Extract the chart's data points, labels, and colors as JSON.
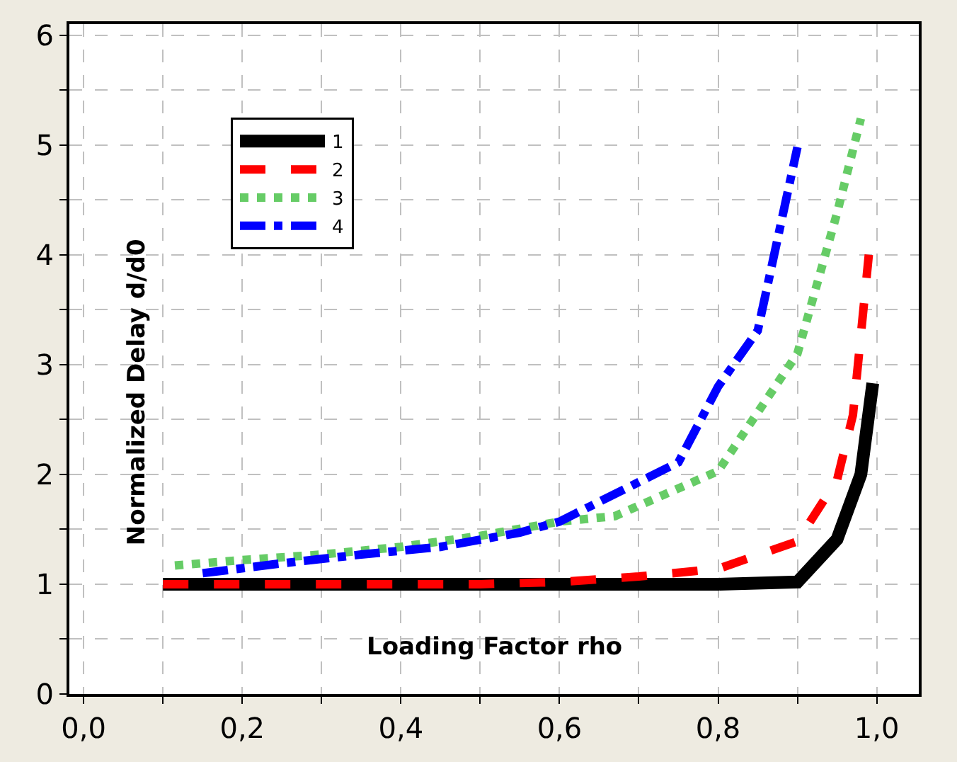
{
  "chart_data": {
    "type": "line",
    "xlabel": "Loading Factor rho",
    "ylabel": "Normalized Delay d/d0",
    "series": [
      {
        "name": "1",
        "color": "#000000",
        "line_style": "solid",
        "x": [
          0.1,
          0.2,
          0.3,
          0.4,
          0.5,
          0.6,
          0.7,
          0.8,
          0.9,
          0.95,
          0.98,
          0.995
        ],
        "values": [
          1.0,
          1.0,
          1.0,
          1.0,
          1.0,
          1.0,
          1.0,
          1.0,
          1.02,
          1.41,
          2.0,
          2.83
        ]
      },
      {
        "name": "2",
        "color": "#ff0000",
        "line_style": "dashed",
        "x": [
          0.1,
          0.2,
          0.3,
          0.4,
          0.5,
          0.6,
          0.7,
          0.8,
          0.9,
          0.95,
          0.97,
          0.99
        ],
        "values": [
          1.0,
          1.0,
          1.0,
          1.0,
          1.0,
          1.02,
          1.07,
          1.14,
          1.39,
          1.95,
          2.54,
          4.0
        ]
      },
      {
        "name": "3",
        "color": "#66cc66",
        "line_style": "dotted",
        "x": [
          0.115,
          0.2,
          0.3,
          0.4,
          0.5,
          0.6,
          0.67,
          0.8,
          0.9,
          0.95,
          0.98
        ],
        "values": [
          1.17,
          1.22,
          1.27,
          1.34,
          1.44,
          1.57,
          1.62,
          2.03,
          3.1,
          4.38,
          5.24
        ]
      },
      {
        "name": "4",
        "color": "#0000ff",
        "line_style": "dashdot",
        "x": [
          0.15,
          0.25,
          0.35,
          0.45,
          0.55,
          0.6,
          0.75,
          0.8,
          0.85,
          0.9
        ],
        "values": [
          1.1,
          1.19,
          1.27,
          1.34,
          1.47,
          1.57,
          2.11,
          2.8,
          3.31,
          4.98
        ]
      }
    ],
    "xlim": [
      -0.018,
      1.053
    ],
    "ylim": [
      0,
      6.1
    ],
    "xticks": [
      {
        "value": 0,
        "label": "0,0"
      },
      {
        "value": 0.1,
        "label": null
      },
      {
        "value": 0.2,
        "label": "0,2"
      },
      {
        "value": 0.3,
        "label": null
      },
      {
        "value": 0.4,
        "label": "0,4"
      },
      {
        "value": 0.5,
        "label": null
      },
      {
        "value": 0.6,
        "label": "0,6"
      },
      {
        "value": 0.7,
        "label": null
      },
      {
        "value": 0.8,
        "label": "0,8"
      },
      {
        "value": 0.9,
        "label": null
      },
      {
        "value": 1.0,
        "label": "1,0"
      }
    ],
    "yticks": [
      0,
      {
        "value": 0.5,
        "label": null
      },
      1,
      {
        "value": 1.5,
        "label": null
      },
      2,
      {
        "value": 2.5,
        "label": null
      },
      3,
      {
        "value": 3.5,
        "label": null
      },
      4,
      {
        "value": 4.5,
        "label": null
      },
      5,
      {
        "value": 5.5,
        "label": null
      },
      6
    ],
    "grid": true,
    "legend": "top left",
    "marker": "none"
  }
}
